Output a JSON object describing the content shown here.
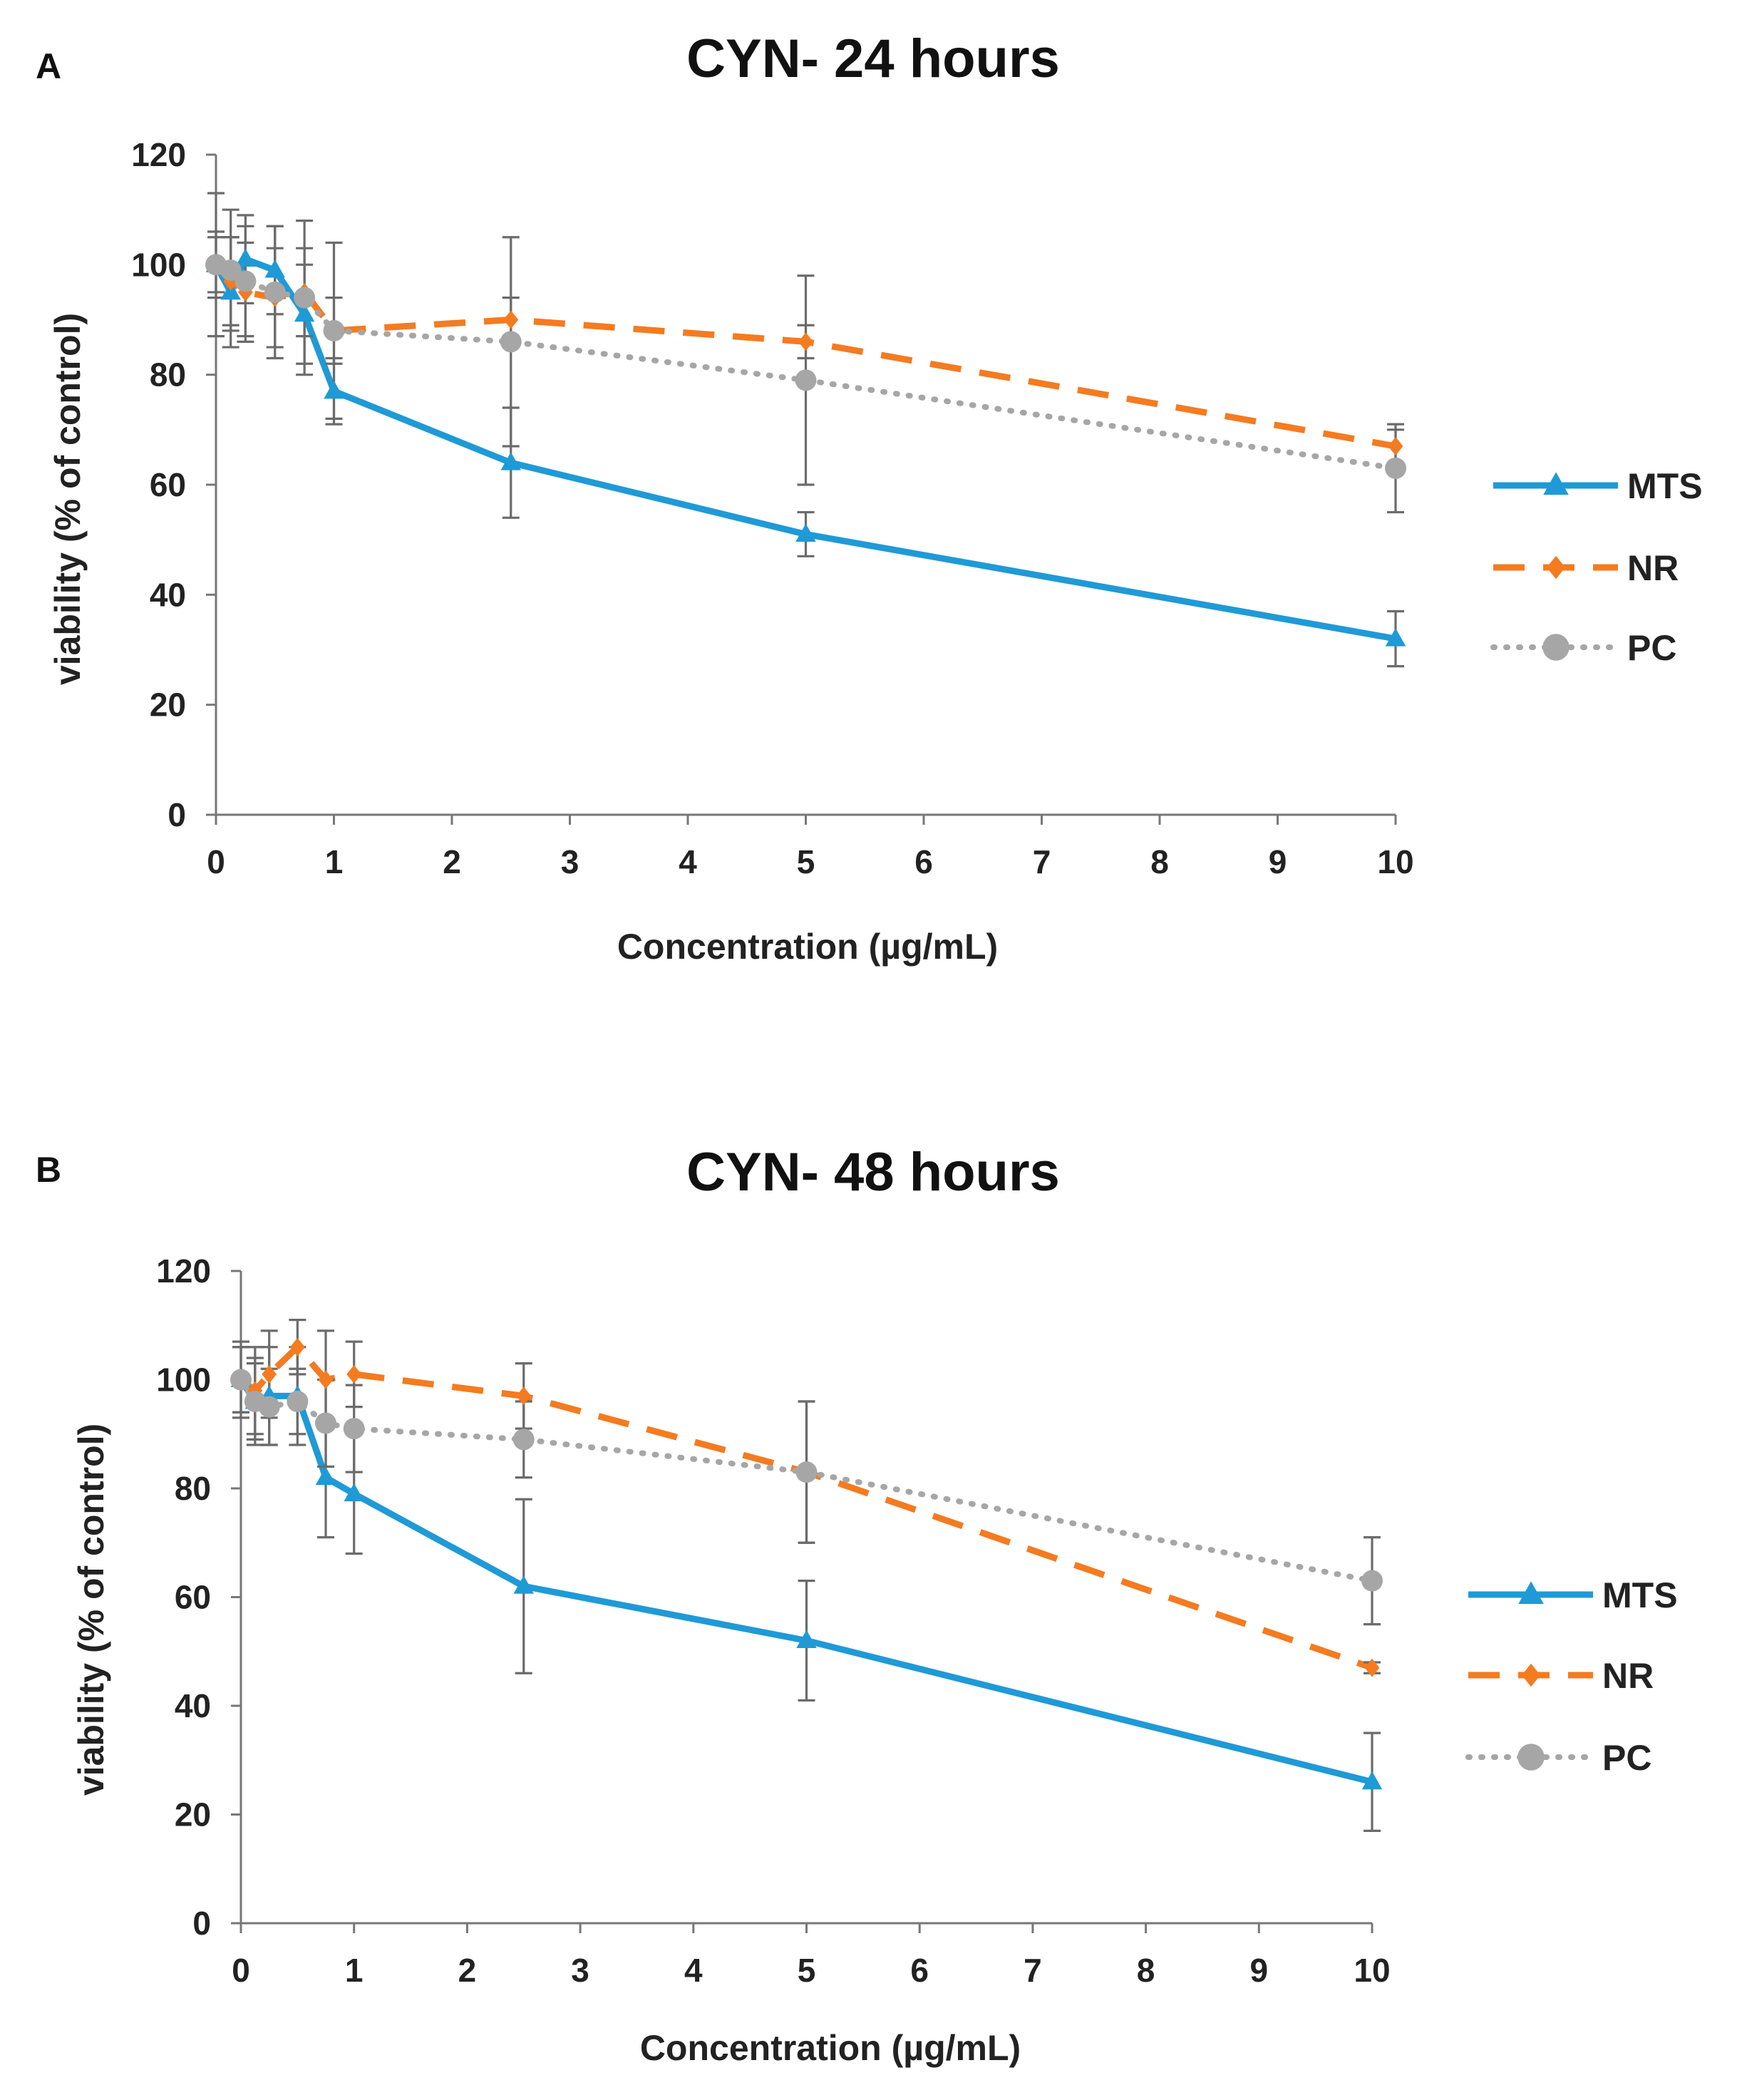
{
  "chart_data": [
    {
      "panel": "A",
      "type": "line",
      "title": "CYN- 24 hours",
      "xlabel": "Concentration (µg/mL)",
      "ylabel": "viability  (% of control)",
      "xlim": [
        0,
        10
      ],
      "ylim": [
        0,
        120
      ],
      "xticks": [
        0,
        1,
        2,
        3,
        4,
        5,
        6,
        7,
        8,
        9,
        10
      ],
      "yticks": [
        0,
        20,
        40,
        60,
        80,
        100,
        120
      ],
      "legend_position": "right",
      "series": [
        {
          "name": "MTS",
          "color": "#1f9ad6",
          "style": "solid",
          "marker": "triangle",
          "x": [
            0,
            0.125,
            0.25,
            0.5,
            0.75,
            1,
            2.5,
            5,
            10
          ],
          "values": [
            100,
            95,
            101,
            99,
            91,
            77,
            64,
            51,
            32
          ],
          "errors": [
            5,
            10,
            8,
            8,
            9,
            6,
            10,
            4,
            5
          ]
        },
        {
          "name": "NR",
          "color": "#f47b20",
          "style": "dashed",
          "marker": "diamond",
          "x": [
            0,
            0.125,
            0.25,
            0.5,
            0.75,
            1,
            2.5,
            5,
            10
          ],
          "values": [
            100,
            97,
            95,
            94,
            95,
            88,
            90,
            86,
            67
          ],
          "errors": [
            6,
            8,
            9,
            9,
            8,
            6,
            4,
            3,
            3
          ]
        },
        {
          "name": "PC",
          "color": "#a6a6a6",
          "style": "dotted",
          "marker": "circle",
          "x": [
            0,
            0.125,
            0.25,
            0.5,
            0.75,
            1,
            2.5,
            5,
            10
          ],
          "values": [
            100,
            99,
            97,
            95,
            94,
            88,
            86,
            79,
            63
          ],
          "errors": [
            13,
            11,
            10,
            12,
            14,
            16,
            19,
            19,
            8
          ]
        }
      ]
    },
    {
      "panel": "B",
      "type": "line",
      "title": "CYN- 48 hours",
      "xlabel": "Concentration (µg/mL)",
      "ylabel": "viability  (% of control)",
      "xlim": [
        0,
        10
      ],
      "ylim": [
        0,
        120
      ],
      "xticks": [
        0,
        1,
        2,
        3,
        4,
        5,
        6,
        7,
        8,
        9,
        10
      ],
      "yticks": [
        0,
        20,
        40,
        60,
        80,
        100,
        120
      ],
      "legend_position": "right",
      "series": [
        {
          "name": "MTS",
          "color": "#1f9ad6",
          "style": "solid",
          "marker": "triangle",
          "x": [
            0,
            0.125,
            0.25,
            0.5,
            0.75,
            1,
            2.5,
            5,
            10
          ],
          "values": [
            100,
            96,
            97,
            97,
            82,
            79,
            62,
            52,
            26
          ],
          "errors": [
            6,
            8,
            9,
            9,
            11,
            11,
            16,
            11,
            9
          ]
        },
        {
          "name": "NR",
          "color": "#f47b20",
          "style": "dashed",
          "marker": "diamond",
          "x": [
            0,
            0.125,
            0.25,
            0.5,
            0.75,
            1,
            2.5,
            5,
            10
          ],
          "values": [
            100,
            98,
            101,
            106,
            100,
            101,
            97,
            83,
            47
          ],
          "errors": [
            6,
            8,
            8,
            5,
            9,
            6,
            6,
            13,
            1
          ]
        },
        {
          "name": "PC",
          "color": "#a6a6a6",
          "style": "dotted",
          "marker": "circle",
          "x": [
            0,
            0.125,
            0.25,
            0.5,
            0.75,
            1,
            2.5,
            5,
            10
          ],
          "values": [
            100,
            96,
            95,
            96,
            92,
            91,
            89,
            83,
            63
          ],
          "errors": [
            7,
            7,
            7,
            6,
            8,
            8,
            7,
            13,
            8
          ]
        }
      ]
    }
  ]
}
